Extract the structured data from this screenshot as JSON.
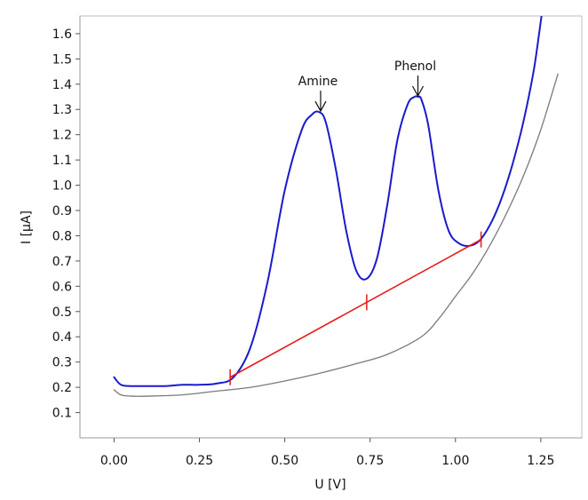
{
  "chart_data": {
    "type": "line",
    "title": "",
    "xlabel": "U [V]",
    "ylabel": "I [µA]",
    "xlim": [
      -0.1,
      1.37
    ],
    "ylim": [
      0.0,
      1.67
    ],
    "grid": false,
    "x_ticks": [
      0.0,
      0.25,
      0.5,
      0.75,
      1.0,
      1.25
    ],
    "x_tick_labels": [
      "0.00",
      "0.25",
      "0.50",
      "0.75",
      "1.00",
      "1.25"
    ],
    "y_ticks": [
      0.1,
      0.2,
      0.3,
      0.4,
      0.5,
      0.6,
      0.7,
      0.8,
      0.9,
      1.0,
      1.1,
      1.2,
      1.3,
      1.4,
      1.5,
      1.6
    ],
    "y_tick_labels": [
      "0.1",
      "0.2",
      "0.3",
      "0.4",
      "0.5",
      "0.6",
      "0.7",
      "0.8",
      "0.9",
      "1.0",
      "1.1",
      "1.2",
      "1.3",
      "1.4",
      "1.5",
      "1.6"
    ],
    "series": [
      {
        "role": "sample",
        "color": "#1a1acc",
        "x": [
          0.0,
          0.02,
          0.05,
          0.1,
          0.15,
          0.2,
          0.25,
          0.3,
          0.35,
          0.4,
          0.45,
          0.5,
          0.55,
          0.58,
          0.6,
          0.62,
          0.65,
          0.68,
          0.71,
          0.74,
          0.77,
          0.8,
          0.83,
          0.86,
          0.88,
          0.89,
          0.9,
          0.92,
          0.95,
          0.98,
          1.01,
          1.04,
          1.07,
          1.1,
          1.13,
          1.16,
          1.19,
          1.21,
          1.23,
          1.245,
          1.255
        ],
        "y": [
          0.24,
          0.21,
          0.205,
          0.205,
          0.205,
          0.21,
          0.21,
          0.215,
          0.24,
          0.36,
          0.62,
          0.98,
          1.22,
          1.28,
          1.29,
          1.25,
          1.06,
          0.82,
          0.66,
          0.63,
          0.71,
          0.92,
          1.18,
          1.32,
          1.35,
          1.35,
          1.34,
          1.24,
          0.98,
          0.82,
          0.77,
          0.76,
          0.78,
          0.84,
          0.93,
          1.05,
          1.2,
          1.32,
          1.46,
          1.6,
          1.7
        ]
      },
      {
        "role": "blank",
        "color": "#7a7a7a",
        "x": [
          0.0,
          0.02,
          0.05,
          0.1,
          0.2,
          0.3,
          0.4,
          0.5,
          0.6,
          0.7,
          0.8,
          0.9,
          0.95,
          1.0,
          1.05,
          1.1,
          1.15,
          1.2,
          1.25,
          1.3
        ],
        "y": [
          0.19,
          0.17,
          0.165,
          0.165,
          0.17,
          0.185,
          0.2,
          0.225,
          0.255,
          0.29,
          0.33,
          0.4,
          0.47,
          0.56,
          0.65,
          0.76,
          0.89,
          1.04,
          1.22,
          1.44
        ]
      },
      {
        "role": "baseline",
        "color": "#e51a1a",
        "x": [
          0.34,
          1.075
        ],
        "y": [
          0.24,
          0.785
        ],
        "markers_x": [
          0.34,
          0.74,
          1.075
        ]
      }
    ],
    "annotations": [
      {
        "text": "Amine",
        "x": 0.605,
        "y": 1.29
      },
      {
        "text": "Phenol",
        "x": 0.89,
        "y": 1.35
      }
    ]
  }
}
